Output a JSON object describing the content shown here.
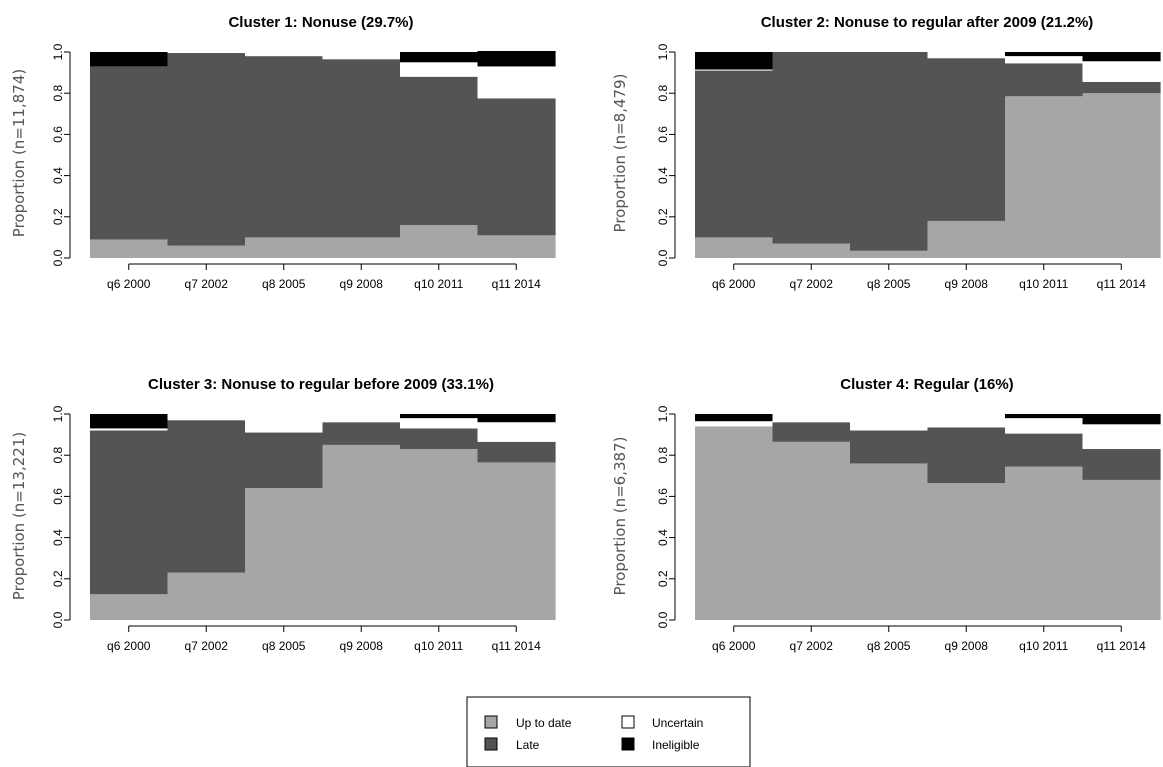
{
  "chart_data": [
    {
      "type": "bar",
      "title": "Cluster 1: Nonuse (29.7%)",
      "ylabel": "Proportion (n=11,874)",
      "categories": [
        "q6 2000",
        "q7 2002",
        "q8 2005",
        "q9 2008",
        "q10 2011",
        "q11 2014"
      ],
      "ylim": [
        0,
        1
      ],
      "yticks": [
        "0.0",
        "0.2",
        "0.4",
        "0.6",
        "0.8",
        "1.0"
      ],
      "series": [
        {
          "name": "Up to date",
          "values": [
            0.09,
            0.06,
            0.1,
            0.1,
            0.16,
            0.11
          ]
        },
        {
          "name": "Late",
          "values": [
            0.84,
            0.935,
            0.88,
            0.865,
            0.72,
            0.665
          ]
        },
        {
          "name": "Uncertain",
          "values": [
            0.0,
            0.005,
            0.02,
            0.035,
            0.07,
            0.155
          ]
        },
        {
          "name": "Ineligible",
          "values": [
            0.07,
            0.0,
            0.0,
            0.0,
            0.05,
            0.075
          ]
        }
      ]
    },
    {
      "type": "bar",
      "title": "Cluster 2: Nonuse to regular after 2009 (21.2%)",
      "ylabel": "Proportion (n=8,479)",
      "categories": [
        "q6 2000",
        "q7 2002",
        "q8 2005",
        "q9 2008",
        "q10 2011",
        "q11 2014"
      ],
      "ylim": [
        0,
        1
      ],
      "yticks": [
        "0.0",
        "0.2",
        "0.4",
        "0.6",
        "0.8",
        "1.0"
      ],
      "series": [
        {
          "name": "Up to date",
          "values": [
            0.1,
            0.07,
            0.035,
            0.18,
            0.785,
            0.8
          ]
        },
        {
          "name": "Late",
          "values": [
            0.81,
            0.93,
            0.965,
            0.79,
            0.16,
            0.055
          ]
        },
        {
          "name": "Uncertain",
          "values": [
            0.005,
            0.0,
            0.0,
            0.03,
            0.035,
            0.1
          ]
        },
        {
          "name": "Ineligible",
          "values": [
            0.085,
            0.0,
            0.0,
            0.0,
            0.02,
            0.045
          ]
        }
      ]
    },
    {
      "type": "bar",
      "title": "Cluster 3: Nonuse to regular before 2009 (33.1%)",
      "ylabel": "Proportion (n=13,221)",
      "categories": [
        "q6 2000",
        "q7 2002",
        "q8 2005",
        "q9 2008",
        "q10 2011",
        "q11 2014"
      ],
      "ylim": [
        0,
        1
      ],
      "yticks": [
        "0.0",
        "0.2",
        "0.4",
        "0.6",
        "0.8",
        "1.0"
      ],
      "series": [
        {
          "name": "Up to date",
          "values": [
            0.125,
            0.23,
            0.64,
            0.85,
            0.83,
            0.765
          ]
        },
        {
          "name": "Late",
          "values": [
            0.795,
            0.74,
            0.27,
            0.11,
            0.1,
            0.1
          ]
        },
        {
          "name": "Uncertain",
          "values": [
            0.01,
            0.03,
            0.09,
            0.04,
            0.05,
            0.095
          ]
        },
        {
          "name": "Ineligible",
          "values": [
            0.07,
            0.0,
            0.0,
            0.0,
            0.02,
            0.04
          ]
        }
      ]
    },
    {
      "type": "bar",
      "title": "Cluster 4: Regular (16%)",
      "ylabel": "Proportion (n=6,387)",
      "categories": [
        "q6 2000",
        "q7 2002",
        "q8 2005",
        "q9 2008",
        "q10 2011",
        "q11 2014"
      ],
      "ylim": [
        0,
        1
      ],
      "yticks": [
        "0.0",
        "0.2",
        "0.4",
        "0.6",
        "0.8",
        "1.0"
      ],
      "series": [
        {
          "name": "Up to date",
          "values": [
            0.94,
            0.865,
            0.76,
            0.665,
            0.745,
            0.68
          ]
        },
        {
          "name": "Late",
          "values": [
            0.0,
            0.095,
            0.16,
            0.27,
            0.16,
            0.15
          ]
        },
        {
          "name": "Uncertain",
          "values": [
            0.025,
            0.04,
            0.08,
            0.065,
            0.075,
            0.12
          ]
        },
        {
          "name": "Ineligible",
          "values": [
            0.035,
            0.0,
            0.0,
            0.0,
            0.02,
            0.05
          ]
        }
      ]
    }
  ],
  "legend": {
    "items": [
      {
        "label": "Up to date",
        "color": "#a6a6a6"
      },
      {
        "label": "Uncertain",
        "color": "#ffffff"
      },
      {
        "label": "Late",
        "color": "#545454"
      },
      {
        "label": "Ineligible",
        "color": "#000000"
      }
    ]
  },
  "colors": {
    "Up to date": "#a6a6a6",
    "Late": "#545454",
    "Uncertain": "#ffffff",
    "Ineligible": "#000000"
  }
}
